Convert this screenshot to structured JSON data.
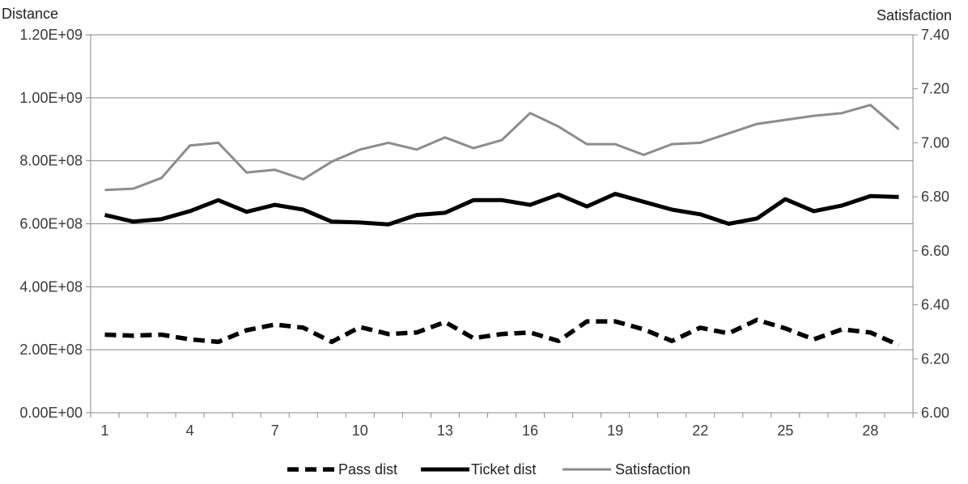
{
  "chart_data": {
    "type": "line",
    "title": "",
    "left_axis_title": "Distance",
    "right_axis_title": "Satisfaction",
    "x": [
      1,
      2,
      3,
      4,
      5,
      6,
      7,
      8,
      9,
      10,
      11,
      12,
      13,
      14,
      15,
      16,
      17,
      18,
      19,
      20,
      21,
      22,
      23,
      24,
      25,
      26,
      27,
      28,
      29
    ],
    "x_tick_labels": [
      "1",
      "4",
      "7",
      "10",
      "13",
      "16",
      "19",
      "22",
      "25",
      "28"
    ],
    "x_tick_values": [
      1,
      4,
      7,
      10,
      13,
      16,
      19,
      22,
      25,
      28
    ],
    "left_ylim": [
      0,
      1200000000
    ],
    "left_y_ticks": [
      0,
      200000000,
      400000000,
      600000000,
      800000000,
      1000000000,
      1200000000
    ],
    "left_y_tick_labels": [
      "0.00E+00",
      "2.00E+08",
      "4.00E+08",
      "6.00E+08",
      "8.00E+08",
      "1.00E+09",
      "1.20E+09"
    ],
    "right_ylim": [
      6.0,
      7.4
    ],
    "right_y_ticks": [
      6.0,
      6.2,
      6.4,
      6.6,
      6.8,
      7.0,
      7.2,
      7.4
    ],
    "right_y_tick_labels": [
      "6.00",
      "6.20",
      "6.40",
      "6.60",
      "6.80",
      "7.00",
      "7.20",
      "7.40"
    ],
    "grid": true,
    "legend_position": "bottom",
    "series": [
      {
        "name": "Pass dist",
        "axis": "left",
        "style": "dashed",
        "color": "#000000",
        "values": [
          248000000,
          245000000,
          248000000,
          233000000,
          225000000,
          262000000,
          280000000,
          270000000,
          225000000,
          272000000,
          250000000,
          255000000,
          288000000,
          237000000,
          250000000,
          255000000,
          228000000,
          290000000,
          290000000,
          265000000,
          228000000,
          270000000,
          252000000,
          295000000,
          268000000,
          233000000,
          265000000,
          255000000,
          215000000
        ]
      },
      {
        "name": "Ticket dist",
        "axis": "left",
        "style": "solid-thick",
        "color": "#000000",
        "values": [
          628000000,
          607000000,
          615000000,
          640000000,
          675000000,
          638000000,
          660000000,
          645000000,
          607000000,
          604000000,
          598000000,
          628000000,
          635000000,
          675000000,
          675000000,
          660000000,
          693000000,
          655000000,
          695000000,
          670000000,
          645000000,
          630000000,
          600000000,
          617000000,
          678000000,
          640000000,
          658000000,
          688000000,
          685000000
        ]
      },
      {
        "name": "Satisfaction",
        "axis": "right",
        "style": "solid",
        "color": "#8c8c8c",
        "values": [
          6.825,
          6.83,
          6.87,
          6.99,
          7.0,
          6.89,
          6.9,
          6.865,
          6.93,
          6.975,
          7.0,
          6.975,
          7.02,
          6.98,
          7.01,
          7.11,
          7.06,
          6.995,
          6.995,
          6.955,
          6.995,
          7.0,
          7.035,
          7.07,
          7.085,
          7.1,
          7.11,
          7.14,
          7.05
        ]
      }
    ]
  }
}
